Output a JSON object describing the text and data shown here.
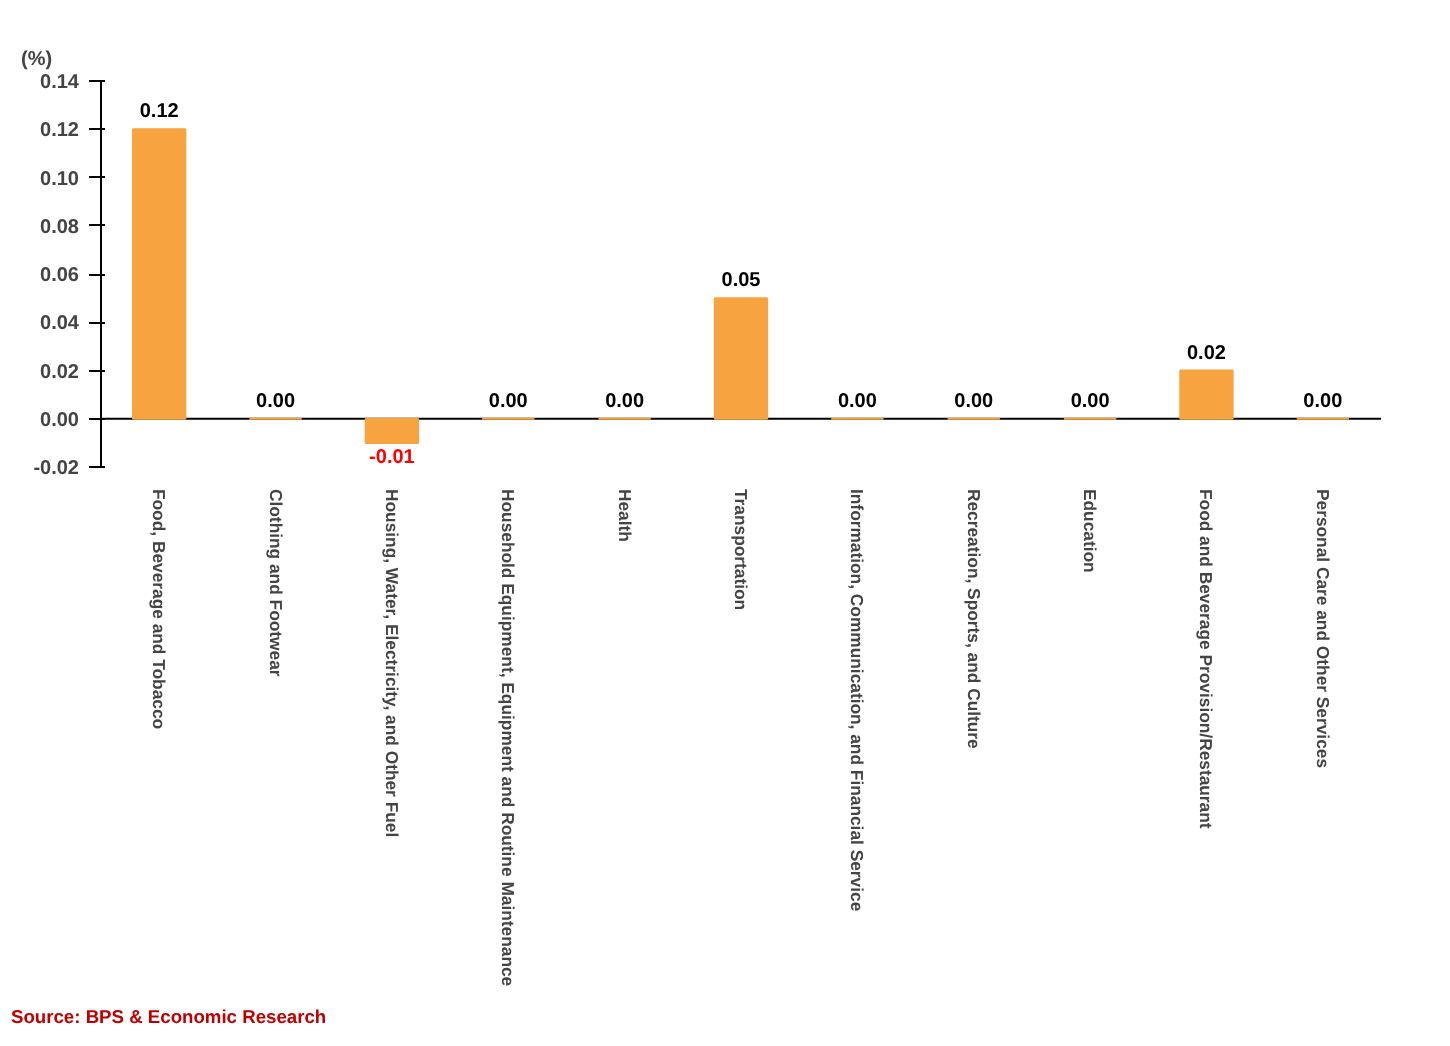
{
  "chart_data": {
    "type": "bar",
    "ylabel": "(%)",
    "categories": [
      "Food, Beverage and Tobacco",
      "Clothing and Footwear",
      "Housing, Water, Electricity, and Other Fuel",
      "Household Equipment, Equipment and Routine Maintenance",
      "Health",
      "Transportation",
      "Information, Communication, and Financial Service",
      "Recreation, Sports, and Culture",
      "Education",
      "Food and Beverage Provision/Restaurant",
      "Personal Care and Other Services"
    ],
    "values": [
      0.12,
      0.0,
      -0.01,
      0.0,
      0.0,
      0.05,
      0.0,
      0.0,
      0.0,
      0.02,
      0.0
    ],
    "value_labels": [
      "0.12",
      "0.00",
      "-0.01",
      "0.00",
      "0.00",
      "0.05",
      "0.00",
      "0.00",
      "0.00",
      "0.02",
      "0.00"
    ],
    "color": "#f7a440",
    "ylim": [
      -0.02,
      0.14
    ],
    "yticks": [
      {
        "value": -0.02,
        "label": "-0.02"
      },
      {
        "value": 0.0,
        "label": "0.00"
      },
      {
        "value": 0.02,
        "label": "0.02"
      },
      {
        "value": 0.04,
        "label": "0.04"
      },
      {
        "value": 0.06,
        "label": "0.06"
      },
      {
        "value": 0.08,
        "label": "0.08"
      },
      {
        "value": 0.1,
        "label": "0.10"
      },
      {
        "value": 0.12,
        "label": "0.12"
      },
      {
        "value": 0.14,
        "label": "0.14"
      }
    ],
    "annotations": [
      "Source: BPS & Economic Research"
    ]
  }
}
